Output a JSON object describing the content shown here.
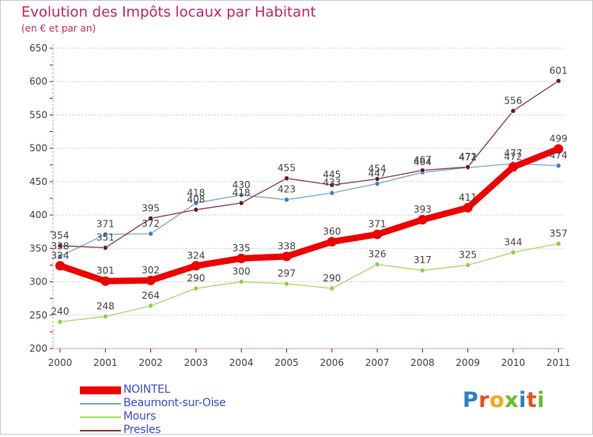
{
  "chart_data": {
    "type": "line",
    "title": "Evolution des Impôts locaux par Habitant",
    "subtitle": "(en € et par an)",
    "categories": [
      "2000",
      "2001",
      "2002",
      "2003",
      "2004",
      "2005",
      "2006",
      "2007",
      "2008",
      "2009",
      "2010",
      "2011"
    ],
    "ylim": [
      200,
      650
    ],
    "yticks": [
      200,
      250,
      300,
      350,
      400,
      450,
      500,
      550,
      600,
      650
    ],
    "series": [
      {
        "name": "Mours",
        "color": "#a6d96a",
        "marker": "#8cd048",
        "values": [
          240,
          248,
          264,
          290,
          300,
          297,
          290,
          326,
          317,
          325,
          344,
          357
        ]
      },
      {
        "name": "Beaumont-sur-Oise",
        "color": "#7ea6cf",
        "marker": "#3d7fc2",
        "values": [
          338,
          371,
          372,
          418,
          430,
          423,
          433,
          447,
          464,
          471,
          477,
          474
        ]
      },
      {
        "name": "Presles",
        "color": "#8b3a44",
        "marker": "#6b1a24",
        "values": [
          354,
          351,
          395,
          408,
          418,
          455,
          445,
          454,
          467,
          472,
          556,
          601
        ]
      },
      {
        "name": "NOINTEL",
        "color": "#ee0000",
        "marker": "#ee0000",
        "values": [
          324,
          301,
          302,
          324,
          335,
          338,
          360,
          371,
          393,
          411,
          472,
          499
        ]
      }
    ],
    "legend": [
      "NOINTEL",
      "Beaumont-sur-Oise",
      "Mours",
      "Presles"
    ]
  },
  "logo": {
    "text": "Proxiti",
    "letters": [
      "P",
      "r",
      "o",
      "x",
      "i",
      "t",
      "i"
    ],
    "colors": [
      "#2d7fc8",
      "#e8501b",
      "#f4a81c",
      "#6cbb2a",
      "#2d7fc8",
      "#e8501b",
      "#6cbb2a"
    ]
  }
}
